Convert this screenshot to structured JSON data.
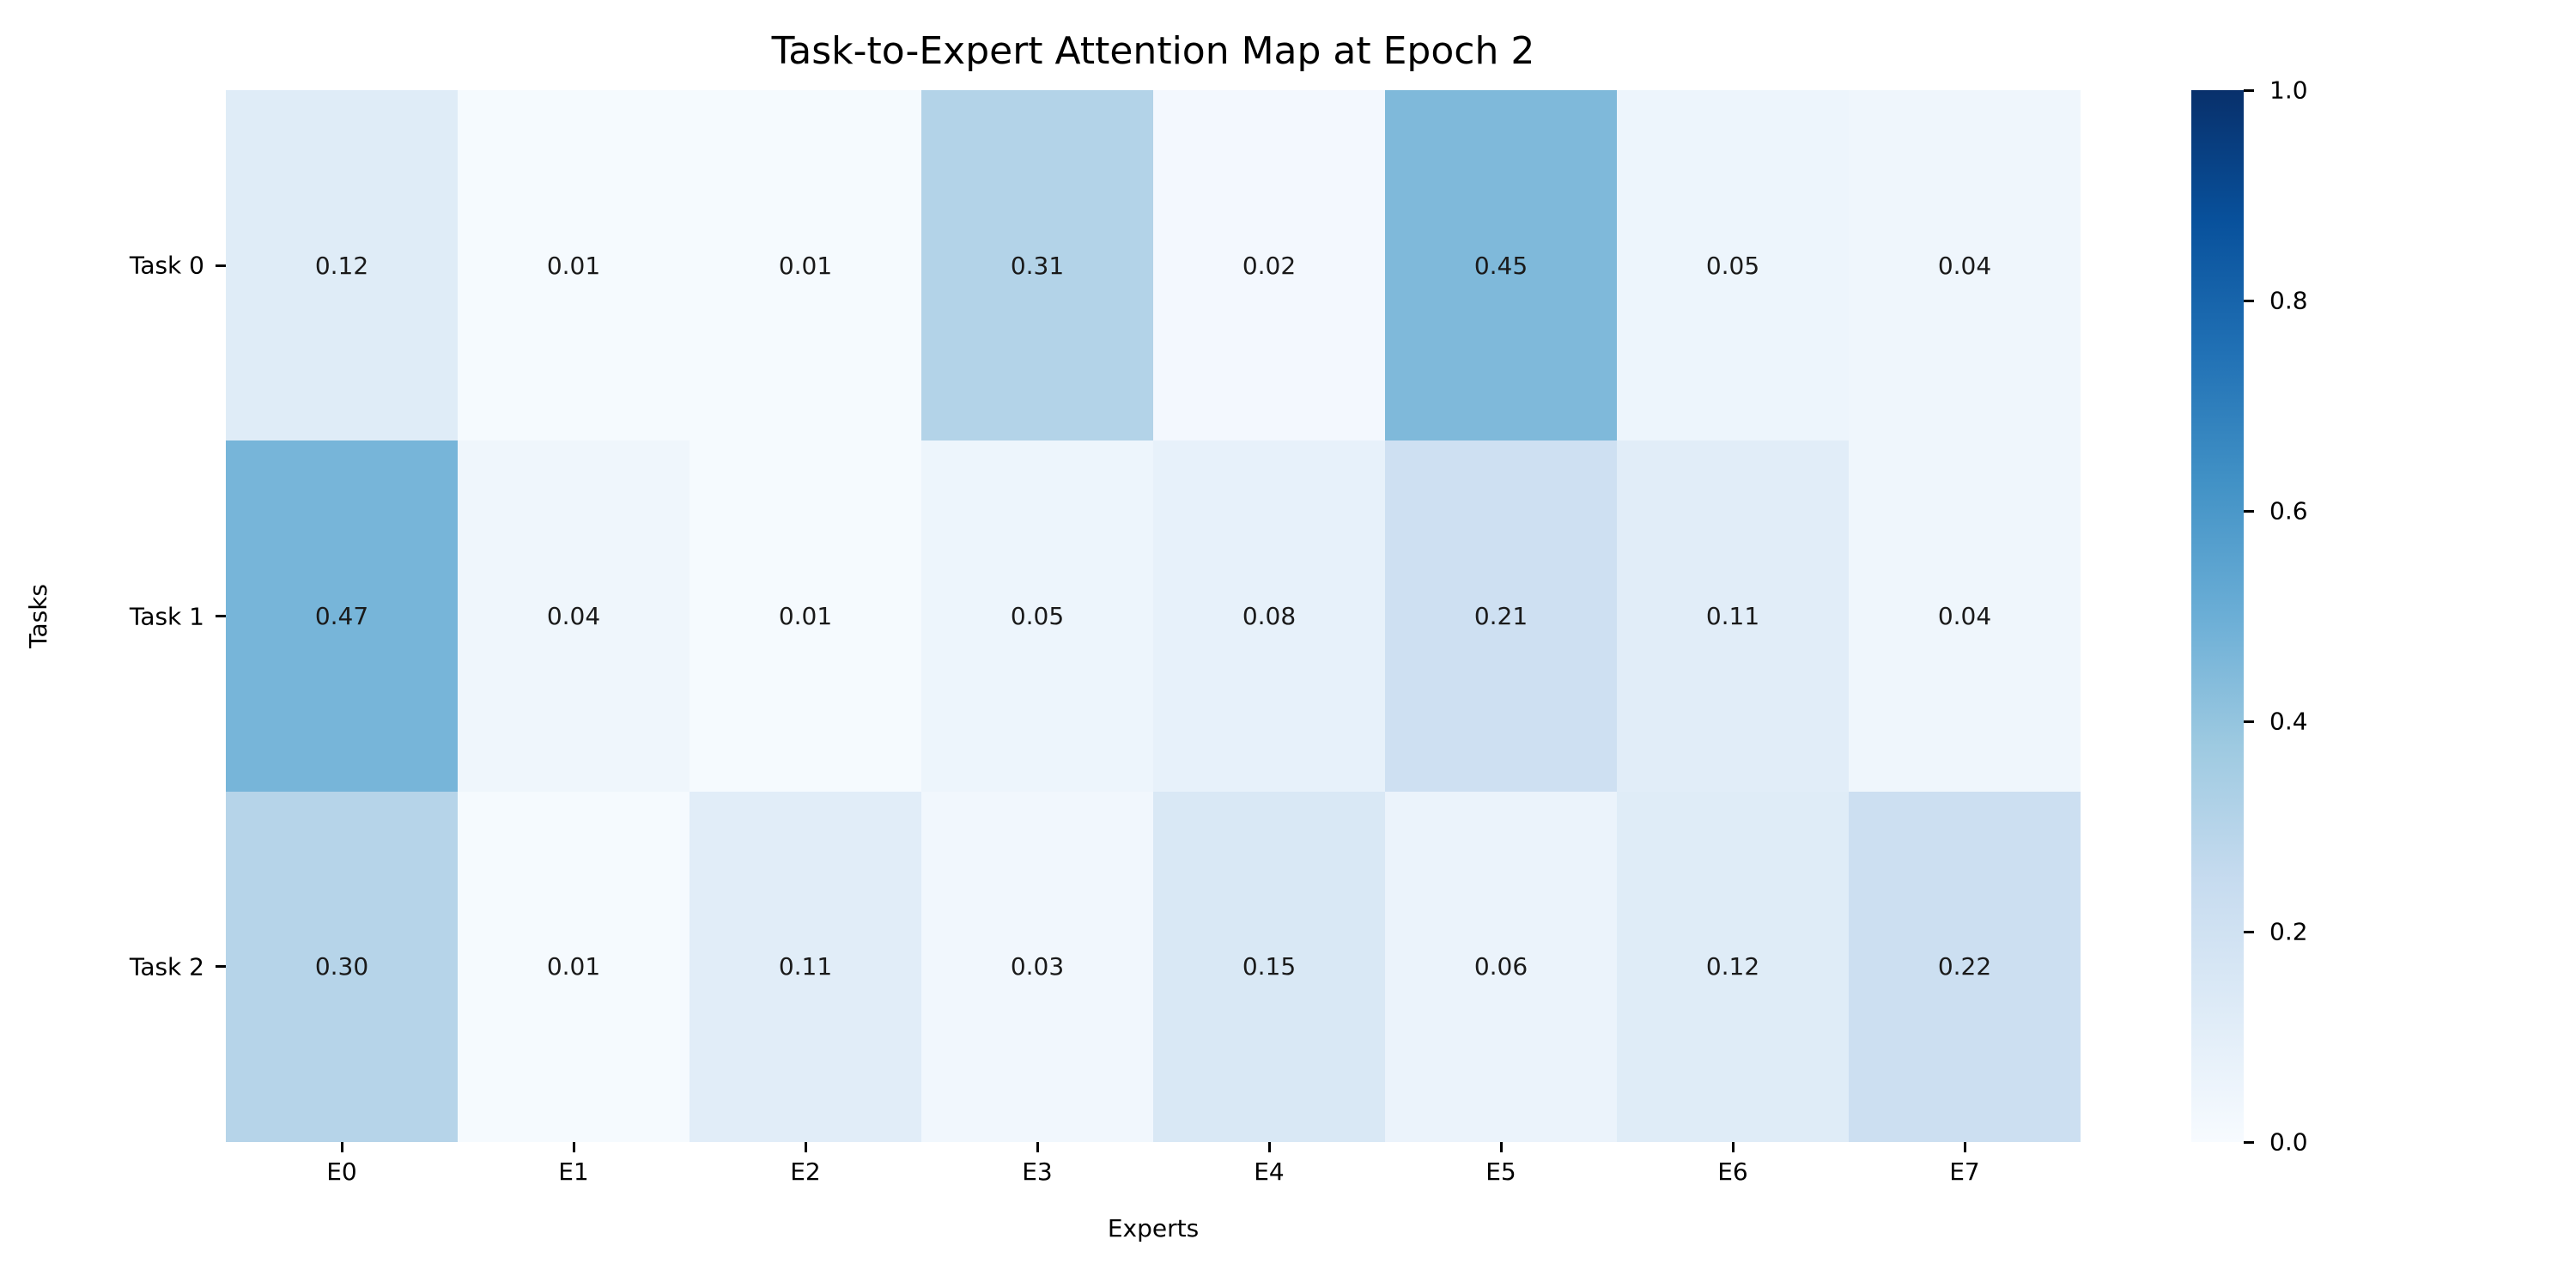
{
  "figure": {
    "background": "#ffffff"
  },
  "chart_data": {
    "type": "heatmap",
    "title": "Task-to-Expert Attention Map at Epoch 2",
    "xlabel": "Experts",
    "ylabel": "Tasks",
    "x_categories": [
      "E0",
      "E1",
      "E2",
      "E3",
      "E4",
      "E5",
      "E6",
      "E7"
    ],
    "y_categories": [
      "Task 0",
      "Task 1",
      "Task 2"
    ],
    "values": [
      [
        0.12,
        0.01,
        0.01,
        0.31,
        0.02,
        0.45,
        0.05,
        0.04
      ],
      [
        0.47,
        0.04,
        0.01,
        0.05,
        0.08,
        0.21,
        0.11,
        0.04
      ],
      [
        0.3,
        0.01,
        0.11,
        0.03,
        0.15,
        0.06,
        0.12,
        0.22
      ]
    ],
    "annotation_decimals": 2,
    "annotation_text_color": "#1a1a1a",
    "grid_lines": "off",
    "legend_position": "none",
    "colormap": {
      "name": "Blues",
      "stops": [
        "#f7fbff",
        "#deebf7",
        "#c6dbef",
        "#9ecae1",
        "#6baed6",
        "#4292c6",
        "#2171b5",
        "#08519c",
        "#08306b"
      ]
    },
    "colorbar": {
      "vmin": 0.0,
      "vmax": 1.0,
      "ticks": [
        {
          "label": "1.0",
          "value": 1.0
        },
        {
          "label": "0.8",
          "value": 0.8
        },
        {
          "label": "0.6",
          "value": 0.6
        },
        {
          "label": "0.4",
          "value": 0.4
        },
        {
          "label": "0.2",
          "value": 0.2
        },
        {
          "label": "0.0",
          "value": 0.0
        }
      ]
    }
  }
}
